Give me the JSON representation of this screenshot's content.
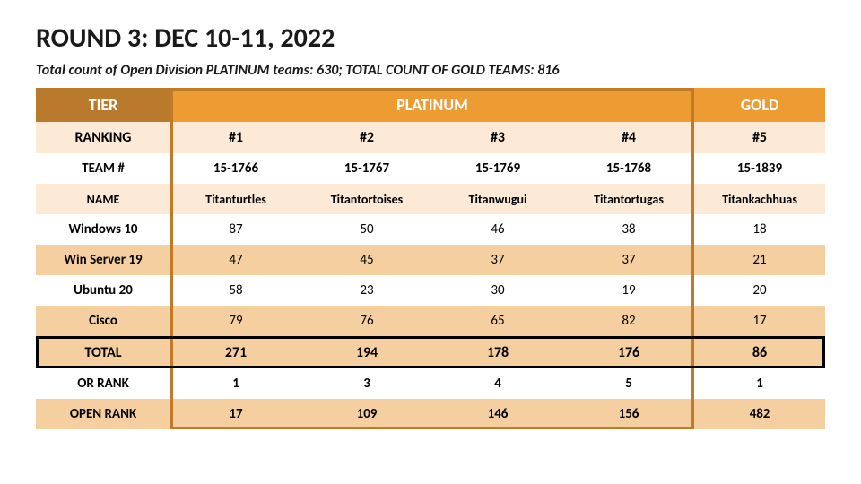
{
  "title": "ROUND 3: DEC 10-11, 2022",
  "subtitle": "Total count of Open Division PLATINUM teams: 630; TOTAL COUNT OF GOLD TEAMS: 816",
  "labels": {
    "tier": "TIER",
    "platinum": "PLATINUM",
    "gold": "GOLD",
    "ranking": "RANKING",
    "team_no": "TEAM #",
    "name": "NAME",
    "total": "TOTAL",
    "or_rank": "OR RANK",
    "open_rank": "OPEN RANK"
  },
  "rankings": [
    "#1",
    "#2",
    "#3",
    "#4",
    "#5"
  ],
  "team_numbers": [
    "15-1766",
    "15-1767",
    "15-1769",
    "15-1768",
    "15-1839"
  ],
  "team_names": [
    "Titanturtles",
    "Titantortoises",
    "Titanwugui",
    "Titantortugas",
    "Titankachhuas"
  ],
  "categories": [
    {
      "label": "Windows 10",
      "values": [
        87,
        50,
        46,
        38,
        18
      ]
    },
    {
      "label": "Win Server 19",
      "values": [
        47,
        45,
        37,
        37,
        21
      ]
    },
    {
      "label": "Ubuntu 20",
      "values": [
        58,
        23,
        30,
        19,
        20
      ]
    },
    {
      "label": "Cisco",
      "values": [
        79,
        76,
        65,
        82,
        17
      ]
    }
  ],
  "totals": [
    271,
    194,
    178,
    176,
    86
  ],
  "or_rank": [
    1,
    3,
    4,
    5,
    1
  ],
  "open_rank": [
    17,
    109,
    146,
    156,
    482
  ],
  "style": {
    "colors": {
      "tier_label_bg": "#b97b2b",
      "tier_plat_bg": "#ed9b33",
      "tier_gold_bg": "#ed9b33",
      "light_band": "#fce9d6",
      "mid_band": "#f6cfa0",
      "white": "#ffffff",
      "plat_outline": "#c07a28",
      "total_outline": "#000000",
      "text": "#000000",
      "title_text": "#1a1a1a"
    },
    "fonts": {
      "title_size_pt": 22,
      "subtitle_size_pt": 12,
      "header_size_pt": 13,
      "cell_size_pt": 11
    }
  }
}
